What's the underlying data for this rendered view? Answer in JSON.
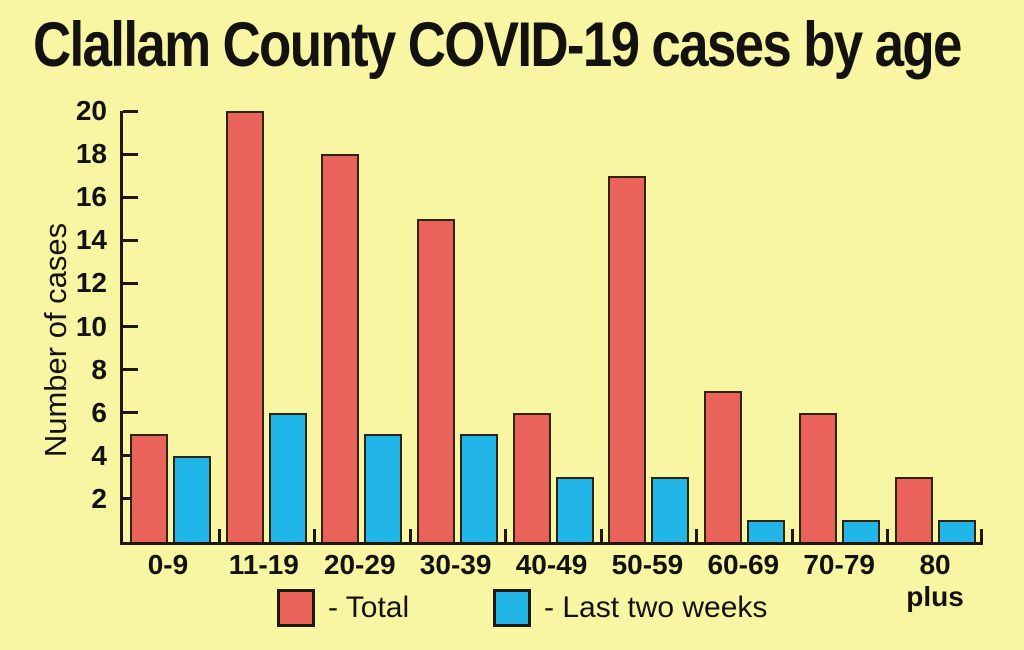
{
  "title": "Clallam County COVID-19 cases by age",
  "chart_data": {
    "type": "bar",
    "title": "Clallam County COVID-19 cases by age",
    "categories": [
      "0-9",
      "11-19",
      "20-29",
      "30-39",
      "40-49",
      "50-59",
      "60-69",
      "70-79",
      "80 plus"
    ],
    "series": [
      {
        "name": "Total",
        "color": "#e9635a",
        "values": [
          5,
          20,
          18,
          15,
          6,
          17,
          7,
          6,
          3
        ]
      },
      {
        "name": "Last two weeks",
        "color": "#22b5e8",
        "values": [
          4,
          6,
          5,
          5,
          3,
          3,
          1,
          1,
          1
        ]
      }
    ],
    "xlabel": "",
    "ylabel": "Number of cases",
    "ylim": [
      0,
      20
    ],
    "yticks": [
      2,
      4,
      6,
      8,
      10,
      12,
      14,
      16,
      18,
      20
    ],
    "grid": false,
    "legend_position": "bottom",
    "background": "#f9f6a3",
    "axis_color": "#1c1711"
  },
  "legend": {
    "items": [
      {
        "label": "- Total",
        "color": "#e9635a"
      },
      {
        "label": "- Last two weeks",
        "color": "#22b5e8"
      }
    ]
  }
}
